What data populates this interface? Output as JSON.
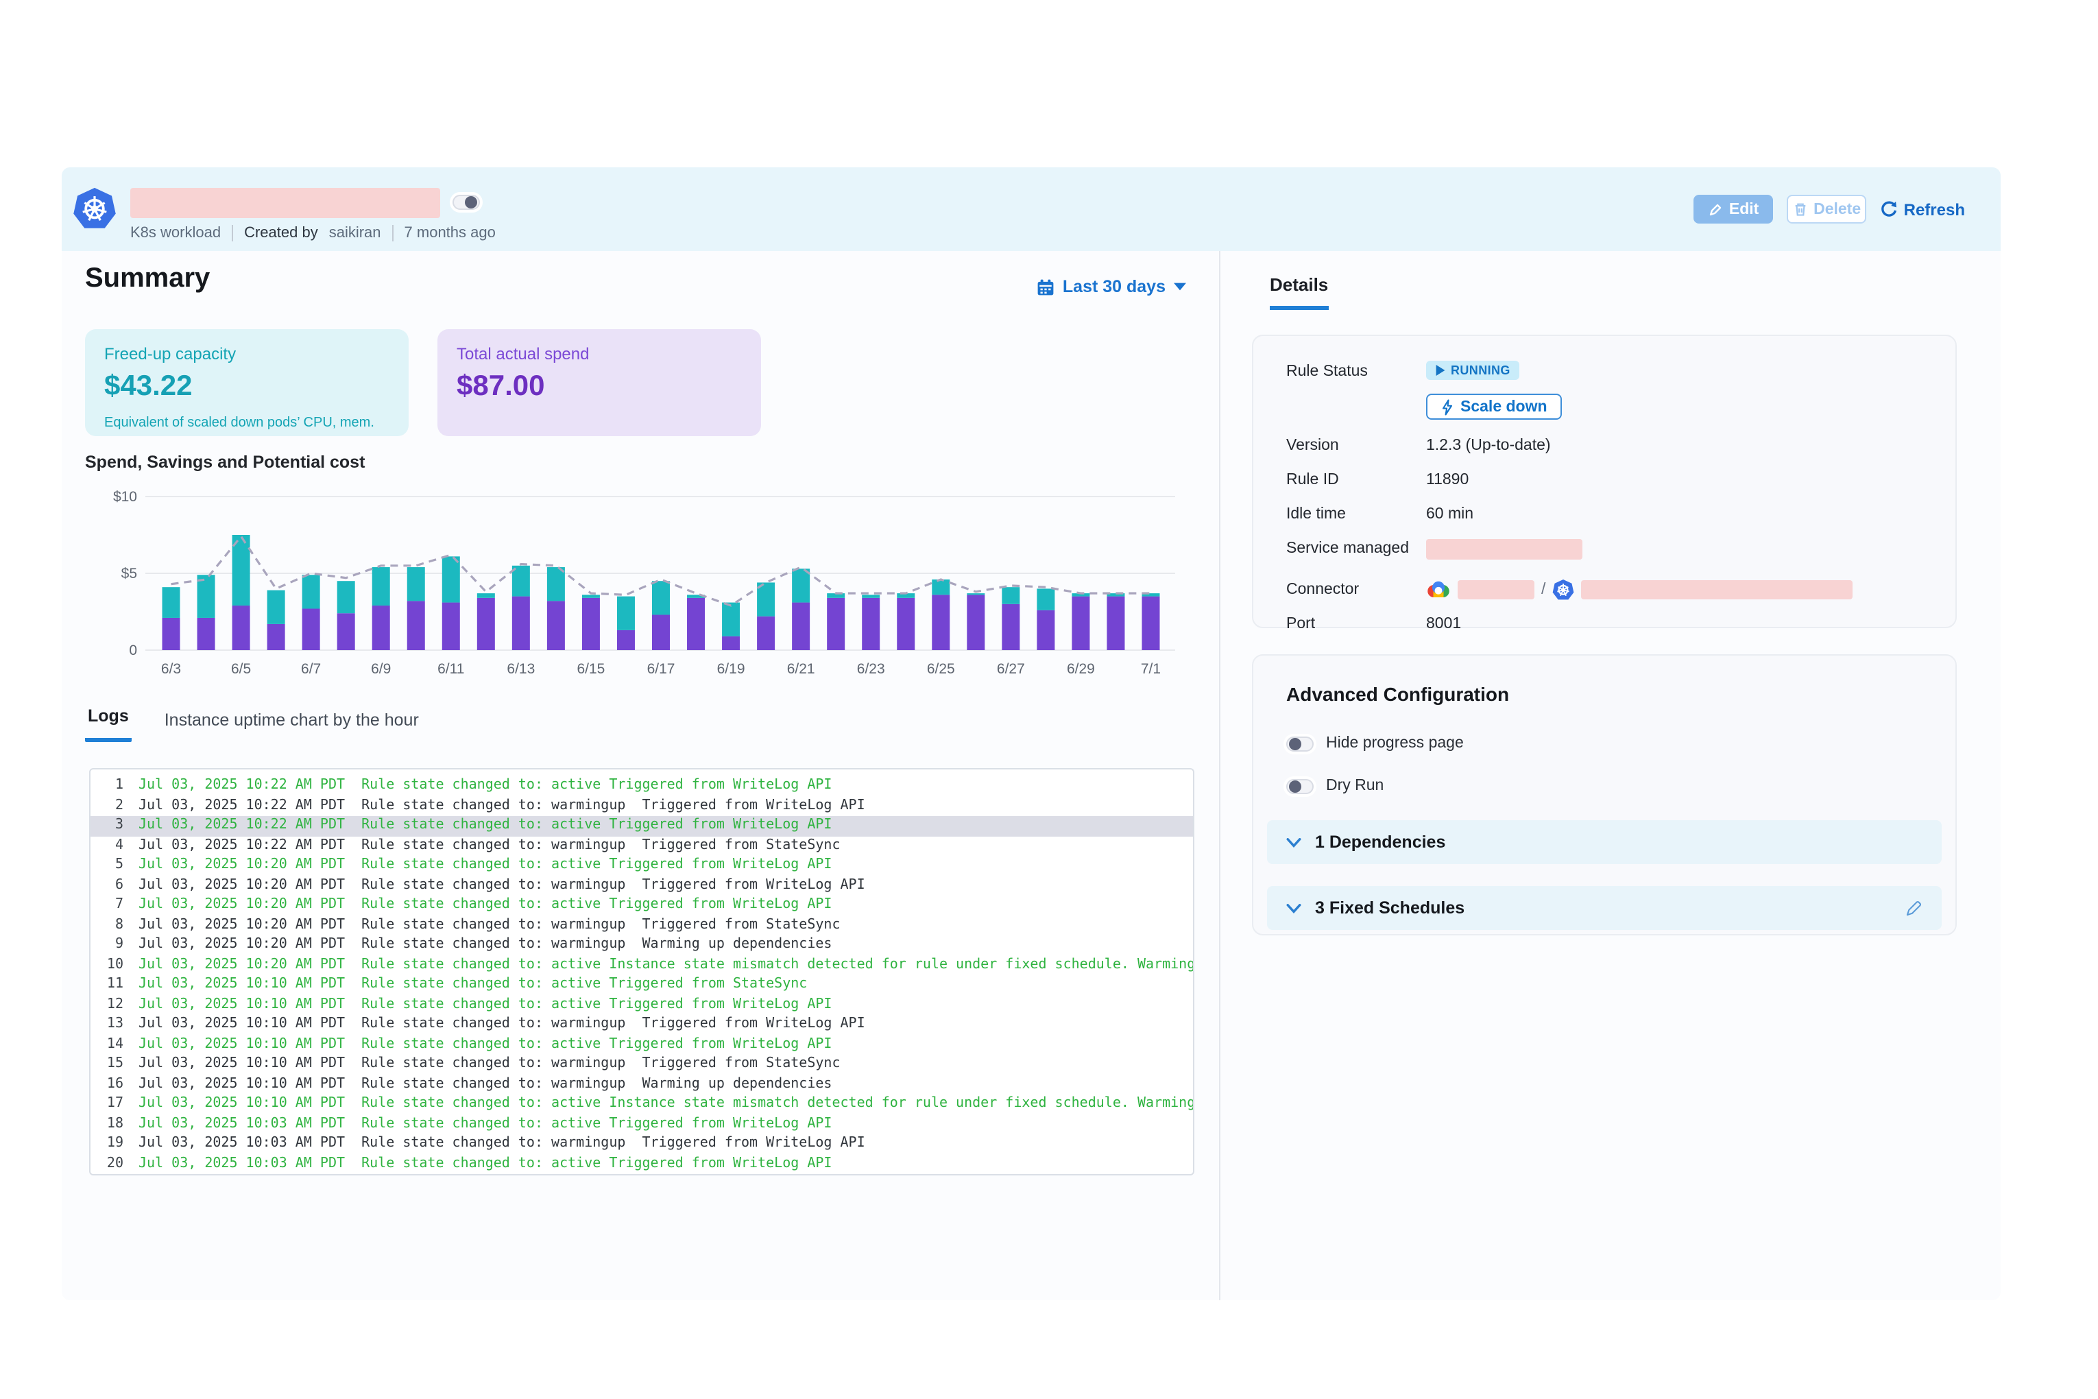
{
  "header": {
    "workload_type": "K8s workload",
    "created_by_label": "Created by",
    "created_by": "saikiran",
    "age": "7 months ago",
    "edit_label": "Edit",
    "delete_label": "Delete",
    "refresh_label": "Refresh"
  },
  "summary": {
    "title": "Summary",
    "date_range": "Last 30 days",
    "cards": [
      {
        "label": "Freed-up capacity",
        "value": "$43.22",
        "caption": "Equivalent of scaled down pods’ CPU, mem."
      },
      {
        "label": "Total actual spend",
        "value": "$87.00"
      }
    ]
  },
  "chart_data": {
    "type": "bar",
    "stacked": true,
    "title": "Spend, Savings and Potential cost",
    "categories": [
      "6/3",
      "6/4",
      "6/5",
      "6/6",
      "6/7",
      "6/8",
      "6/9",
      "6/10",
      "6/11",
      "6/12",
      "6/13",
      "6/14",
      "6/15",
      "6/16",
      "6/17",
      "6/18",
      "6/19",
      "6/20",
      "6/21",
      "6/22",
      "6/23",
      "6/24",
      "6/25",
      "6/26",
      "6/27",
      "6/28",
      "6/29",
      "6/30",
      "7/1"
    ],
    "series": [
      {
        "name": "Spend",
        "color": "#7444d2",
        "values": [
          2.1,
          2.1,
          2.9,
          1.7,
          2.7,
          2.4,
          2.9,
          3.2,
          3.1,
          3.4,
          3.5,
          3.2,
          3.4,
          1.3,
          2.3,
          3.4,
          0.9,
          2.2,
          3.1,
          3.4,
          3.4,
          3.4,
          3.6,
          3.6,
          3.0,
          2.6,
          3.5,
          3.5,
          3.5
        ]
      },
      {
        "name": "Savings",
        "color": "#1cb9c0",
        "values": [
          2.0,
          2.8,
          4.6,
          2.2,
          2.2,
          2.1,
          2.5,
          2.2,
          3.0,
          0.3,
          2.0,
          2.2,
          0.2,
          2.2,
          2.2,
          0.2,
          2.2,
          2.2,
          2.2,
          0.3,
          0.2,
          0.3,
          1.0,
          0.1,
          1.1,
          1.4,
          0.2,
          0.2,
          0.2
        ]
      }
    ],
    "line_series": {
      "name": "Potential cost",
      "color": "#a9a5bd",
      "style": "dashed",
      "values": [
        4.3,
        4.6,
        7.4,
        4.0,
        5.0,
        4.7,
        5.5,
        5.5,
        6.2,
        3.8,
        5.6,
        5.5,
        3.7,
        3.6,
        4.6,
        3.7,
        2.9,
        4.4,
        5.4,
        3.7,
        3.7,
        3.7,
        4.6,
        3.8,
        4.2,
        4.1,
        3.7,
        3.7,
        3.7
      ]
    },
    "ylim": [
      0,
      10
    ],
    "yticks": [
      {
        "label": "$10",
        "value": 10
      },
      {
        "label": "$5",
        "value": 5
      },
      {
        "label": "0",
        "value": 0
      }
    ],
    "x_tick_every": 2,
    "grid": true,
    "legend": "none"
  },
  "tabs": {
    "logs": "Logs",
    "uptime": "Instance uptime chart by the hour"
  },
  "logs": [
    {
      "n": 1,
      "time": "Jul 03, 2025 10:22 AM PDT",
      "message": "Rule state changed to: active Triggered from WriteLog API",
      "state": "active",
      "highlighted": false
    },
    {
      "n": 2,
      "time": "Jul 03, 2025 10:22 AM PDT",
      "message": "Rule state changed to: warmingup  Triggered from WriteLog API",
      "state": "warmingup",
      "highlighted": false
    },
    {
      "n": 3,
      "time": "Jul 03, 2025 10:22 AM PDT",
      "message": "Rule state changed to: active Triggered from WriteLog API",
      "state": "active",
      "highlighted": true
    },
    {
      "n": 4,
      "time": "Jul 03, 2025 10:22 AM PDT",
      "message": "Rule state changed to: warmingup  Triggered from StateSync",
      "state": "warmingup",
      "highlighted": false
    },
    {
      "n": 5,
      "time": "Jul 03, 2025 10:20 AM PDT",
      "message": "Rule state changed to: active Triggered from WriteLog API",
      "state": "active",
      "highlighted": false
    },
    {
      "n": 6,
      "time": "Jul 03, 2025 10:20 AM PDT",
      "message": "Rule state changed to: warmingup  Triggered from WriteLog API",
      "state": "warmingup",
      "highlighted": false
    },
    {
      "n": 7,
      "time": "Jul 03, 2025 10:20 AM PDT",
      "message": "Rule state changed to: active Triggered from WriteLog API",
      "state": "active",
      "highlighted": false
    },
    {
      "n": 8,
      "time": "Jul 03, 2025 10:20 AM PDT",
      "message": "Rule state changed to: warmingup  Triggered from StateSync",
      "state": "warmingup",
      "highlighted": false
    },
    {
      "n": 9,
      "time": "Jul 03, 2025 10:20 AM PDT",
      "message": "Rule state changed to: warmingup  Warming up dependencies",
      "state": "warmingup",
      "highlighted": false
    },
    {
      "n": 10,
      "time": "Jul 03, 2025 10:20 AM PDT",
      "message": "Rule state changed to: active Instance state mismatch detected for rule under fixed schedule. Warming up",
      "state": "active",
      "highlighted": false
    },
    {
      "n": 11,
      "time": "Jul 03, 2025 10:10 AM PDT",
      "message": "Rule state changed to: active Triggered from StateSync",
      "state": "active",
      "highlighted": false
    },
    {
      "n": 12,
      "time": "Jul 03, 2025 10:10 AM PDT",
      "message": "Rule state changed to: active Triggered from WriteLog API",
      "state": "active",
      "highlighted": false
    },
    {
      "n": 13,
      "time": "Jul 03, 2025 10:10 AM PDT",
      "message": "Rule state changed to: warmingup  Triggered from WriteLog API",
      "state": "warmingup",
      "highlighted": false
    },
    {
      "n": 14,
      "time": "Jul 03, 2025 10:10 AM PDT",
      "message": "Rule state changed to: active Triggered from WriteLog API",
      "state": "active",
      "highlighted": false
    },
    {
      "n": 15,
      "time": "Jul 03, 2025 10:10 AM PDT",
      "message": "Rule state changed to: warmingup  Triggered from StateSync",
      "state": "warmingup",
      "highlighted": false
    },
    {
      "n": 16,
      "time": "Jul 03, 2025 10:10 AM PDT",
      "message": "Rule state changed to: warmingup  Warming up dependencies",
      "state": "warmingup",
      "highlighted": false
    },
    {
      "n": 17,
      "time": "Jul 03, 2025 10:10 AM PDT",
      "message": "Rule state changed to: active Instance state mismatch detected for rule under fixed schedule. Warming up",
      "state": "active",
      "highlighted": false
    },
    {
      "n": 18,
      "time": "Jul 03, 2025 10:03 AM PDT",
      "message": "Rule state changed to: active Triggered from WriteLog API",
      "state": "active",
      "highlighted": false
    },
    {
      "n": 19,
      "time": "Jul 03, 2025 10:03 AM PDT",
      "message": "Rule state changed to: warmingup  Triggered from WriteLog API",
      "state": "warmingup",
      "highlighted": false
    },
    {
      "n": 20,
      "time": "Jul 03, 2025 10:03 AM PDT",
      "message": "Rule state changed to: active Triggered from WriteLog API",
      "state": "active",
      "highlighted": false
    }
  ],
  "details": {
    "tab_label": "Details",
    "rule_status_label": "Rule Status",
    "rule_status": "RUNNING",
    "scale_down_label": "Scale down",
    "version_label": "Version",
    "version": "1.2.3 (Up-to-date)",
    "rule_id_label": "Rule ID",
    "rule_id": "11890",
    "idle_time_label": "Idle time",
    "idle_time": "60 min",
    "service_managed_label": "Service managed",
    "connector_label": "Connector",
    "connector_separator": "/",
    "port_label": "Port",
    "port": "8001"
  },
  "advanced": {
    "title": "Advanced Configuration",
    "toggles": [
      {
        "label": "Hide progress page",
        "on": false
      },
      {
        "label": "Dry Run",
        "on": false
      }
    ],
    "sections": [
      {
        "label": "1 Dependencies"
      },
      {
        "label": "3 Fixed Schedules"
      }
    ]
  },
  "colors": {
    "accent_blue": "#1a73cf",
    "header_bg": "#e7f5fb",
    "redacted_pink": "#f8d3d3",
    "bar_spend_purple": "#7444d2",
    "bar_savings_teal": "#1cb9c0",
    "potential_line_gray": "#a9a5bd",
    "log_active_green": "#2fb340",
    "badge_running_bg": "#c9ecfa",
    "badge_running_text": "#1474c4",
    "freed_card_bg": "#dff4f8",
    "freed_card_text": "#13a4b4",
    "spend_card_bg": "#eae2f8",
    "spend_card_text": "#6d2fc0"
  }
}
